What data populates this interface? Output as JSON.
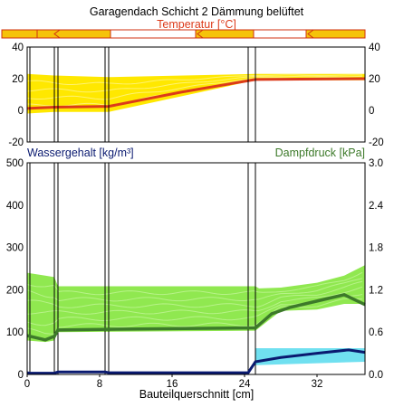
{
  "chart_data": [
    {
      "id": "temperature",
      "type": "area",
      "title": "Garagendach Schicht 2 Dämmung belüftet",
      "subtitle": "Temperatur [°C]",
      "xlabel": "",
      "ylabel": "",
      "xlim": [
        0,
        37.3
      ],
      "ylim": [
        -20,
        40
      ],
      "y_ticks": [
        -20,
        0,
        20,
        40
      ],
      "grid": false,
      "layer_boundaries_cm": [
        0.3,
        3.0,
        3.4,
        8.6,
        9.0,
        24.4,
        25.2
      ],
      "band": {
        "x": [
          0,
          3,
          9,
          25.2,
          37.3
        ],
        "lower": [
          -2,
          -1,
          -1,
          19,
          19
        ],
        "upper": [
          23,
          22,
          21,
          23,
          23
        ]
      },
      "series": [
        {
          "values": [
            [
              0,
              1.2
            ],
            [
              3.0,
              2.0
            ],
            [
              9.0,
              2.5
            ],
            [
              17.0,
              11.5
            ],
            [
              25.2,
              19.5
            ],
            [
              37.3,
              20.0
            ]
          ]
        }
      ],
      "colors": {
        "band": "#ffe800",
        "line": "#dc3a1a"
      }
    },
    {
      "id": "moisture",
      "type": "line",
      "title_left": "Wassergehalt [kg/m³]",
      "title_right": "Dampfdruck [kPa]",
      "xlabel": "Bauteilquerschnitt [cm]",
      "xlim": [
        0,
        37.3
      ],
      "x_ticks": [
        0,
        8,
        16,
        24,
        32
      ],
      "ylim_left": [
        0,
        500
      ],
      "y_ticks_left": [
        0,
        100,
        200,
        300,
        400,
        500
      ],
      "ylim_right": [
        0.0,
        3.0
      ],
      "y_ticks_right": [
        "0.0",
        "0.6",
        "1.2",
        "1.8",
        "2.4",
        "3.0"
      ],
      "grid": false,
      "layer_boundaries_cm": [
        0.3,
        3.0,
        3.4,
        8.6,
        9.0,
        24.4,
        25.2
      ],
      "vapor_band": {
        "x": [
          0,
          2.0,
          3.0,
          3.4,
          25.2,
          25.6,
          28.0,
          32.0,
          35.0,
          37.3
        ],
        "lower": [
          0.48,
          0.46,
          0.48,
          0.6,
          0.62,
          0.66,
          0.9,
          0.92,
          1.0,
          1.0
        ],
        "upper": [
          1.44,
          1.4,
          1.38,
          1.25,
          1.25,
          1.22,
          1.23,
          1.3,
          1.4,
          1.55
        ]
      },
      "water_band": {
        "x": [
          25.2,
          37.3
        ],
        "lower": [
          22,
          30
        ],
        "upper": [
          62,
          62
        ]
      },
      "series": [
        {
          "axis": "right",
          "values": [
            [
              0,
              0.55
            ],
            [
              2.0,
              0.49
            ],
            [
              3.0,
              0.54
            ],
            [
              3.4,
              0.63
            ],
            [
              9.0,
              0.64
            ],
            [
              25.2,
              0.66
            ],
            [
              27.0,
              0.86
            ],
            [
              29.0,
              0.95
            ],
            [
              32.0,
              1.04
            ],
            [
              35.0,
              1.13
            ],
            [
              37.3,
              0.99
            ]
          ]
        },
        {
          "axis": "left",
          "values": [
            [
              0,
              4
            ],
            [
              0.3,
              3
            ],
            [
              3.0,
              3
            ],
            [
              3.4,
              6
            ],
            [
              8.6,
              6
            ],
            [
              9.0,
              4
            ],
            [
              24.4,
              4
            ],
            [
              25.2,
              30
            ],
            [
              28.0,
              40
            ],
            [
              32.0,
              50
            ],
            [
              35.5,
              58
            ],
            [
              37.3,
              52
            ]
          ]
        }
      ],
      "colors": {
        "vapor_band": "#90e850",
        "vapor_line": "#3d7a2a",
        "water_band": "#70e0f0",
        "water_line": "#0a1a70"
      }
    }
  ]
}
